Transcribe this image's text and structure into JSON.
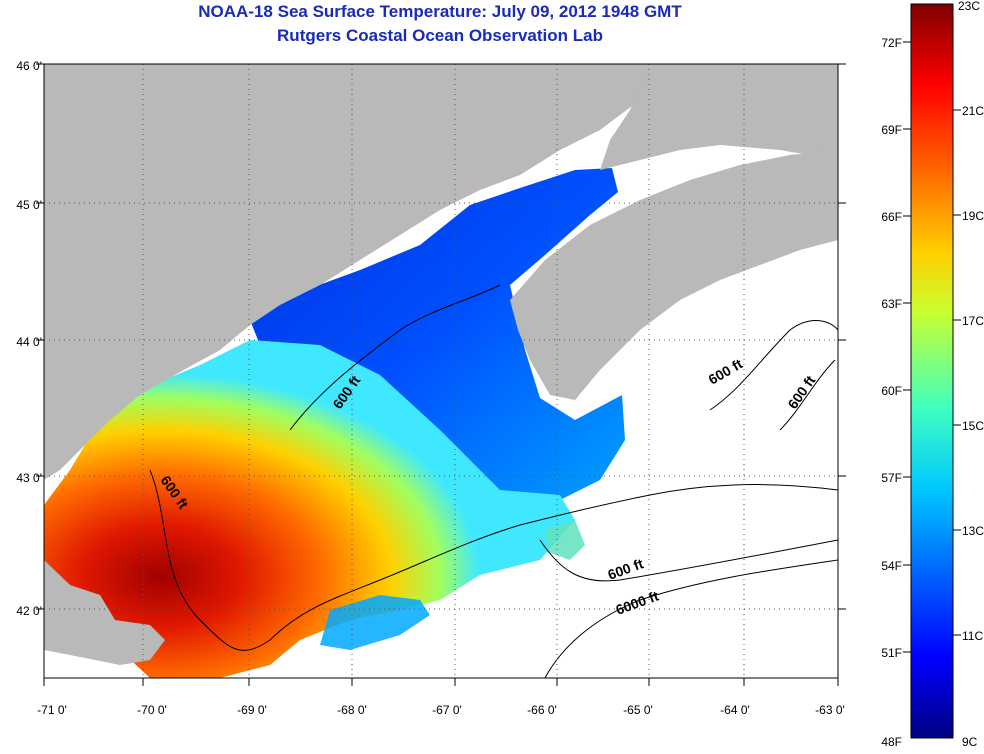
{
  "header": {
    "title": "NOAA-18 Sea Surface Temperature:  July 09, 2012 1948 GMT",
    "subtitle": "Rutgers Coastal Ocean Observation Lab"
  },
  "map": {
    "lon_range": [
      -71,
      -63
    ],
    "lat_range": [
      41.5,
      46
    ],
    "lon_ticks": [
      "-71 0'",
      "-70 0'",
      "-69 0'",
      "-68 0'",
      "-67 0'",
      "-66 0'",
      "-65 0'",
      "-64 0'",
      "-63 0'"
    ],
    "lat_ticks": [
      "46 0'",
      "45 0'",
      "44 0'",
      "43 0'",
      "42 0'"
    ],
    "contour_labels": [
      "600 ft",
      "600 ft",
      "600 ft",
      "600 ft",
      "6000 ft",
      "600 ft"
    ],
    "colors": {
      "land": "#b9b9b9",
      "no_data": "#ffffff",
      "grid": "#555555"
    }
  },
  "colorbar": {
    "celsius_labels": [
      "23C",
      "21C",
      "19C",
      "17C",
      "15C",
      "13C",
      "11C",
      "9C"
    ],
    "fahrenheit_labels": [
      "72F",
      "69F",
      "66F",
      "63F",
      "60F",
      "57F",
      "54F",
      "51F",
      "48F"
    ],
    "colormap": [
      "#00007f",
      "#0000ff",
      "#007fff",
      "#00ffff",
      "#7fff7f",
      "#ffff00",
      "#ff7f00",
      "#ff0000",
      "#7f0000"
    ]
  }
}
